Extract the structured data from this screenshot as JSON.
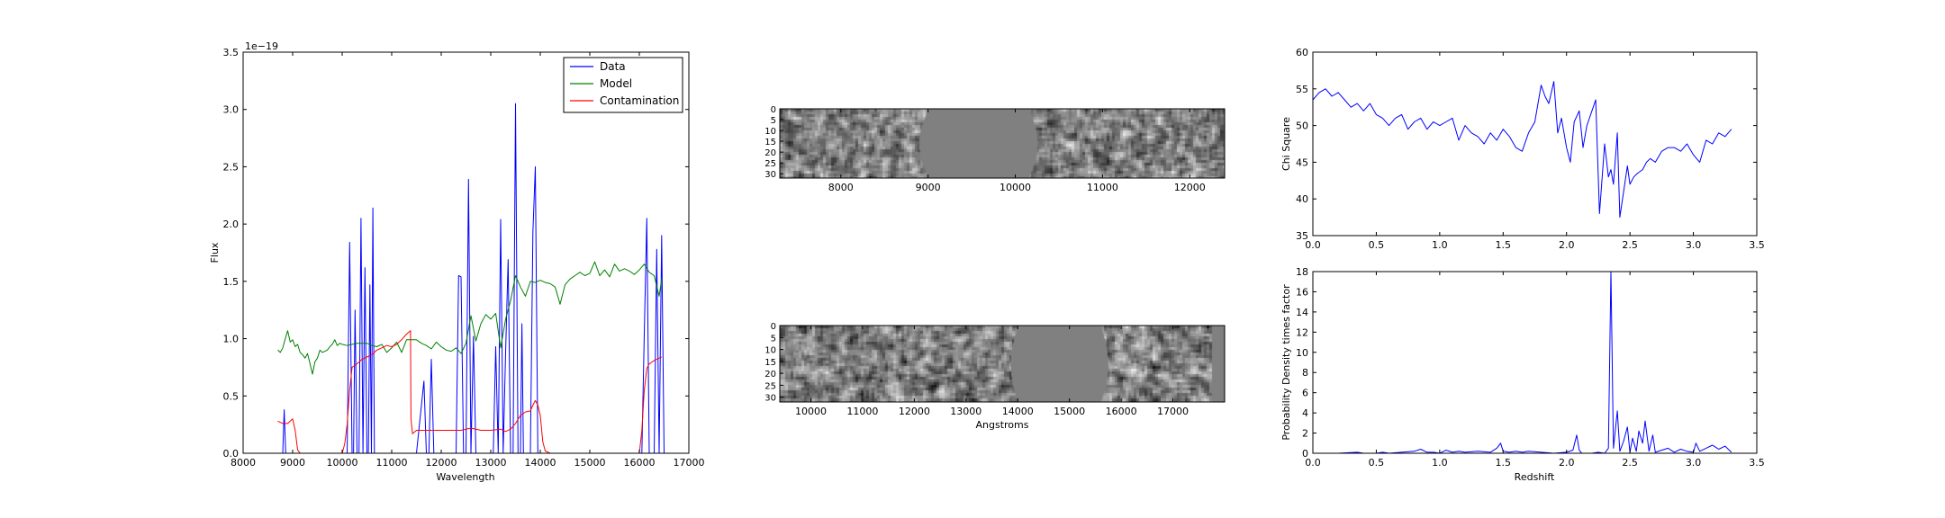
{
  "chart_data": [
    {
      "id": "flux",
      "type": "line",
      "xlabel": "Wavelength",
      "ylabel": "Flux",
      "offset_text": "1e−19",
      "xlim": [
        8000,
        17000
      ],
      "ylim": [
        0,
        3.5
      ],
      "xticks": [
        "8000",
        "9000",
        "10000",
        "11000",
        "12000",
        "13000",
        "14000",
        "15000",
        "16000",
        "17000"
      ],
      "yticks": [
        "0.0",
        "0.5",
        "1.0",
        "1.5",
        "2.0",
        "2.5",
        "3.0",
        "3.5"
      ],
      "legend_position": "top-right",
      "series": [
        {
          "name": "Data",
          "color": "#0000ff",
          "x": [
            8700,
            8800,
            8830,
            8860,
            8900,
            9000,
            9100,
            9200,
            9300,
            9400,
            9500,
            9600,
            9700,
            9800,
            9900,
            10000,
            10100,
            10150,
            10200,
            10230,
            10260,
            10300,
            10340,
            10380,
            10420,
            10460,
            10500,
            10530,
            10560,
            10590,
            10620,
            10650,
            10680,
            10710,
            10740,
            10770,
            10800,
            10830,
            10860,
            10890,
            10920,
            10950,
            10980,
            11010,
            11040,
            11070,
            11100,
            11300,
            11500,
            11650,
            11700,
            11750,
            11800,
            11850,
            11900,
            11950,
            12000,
            12100,
            12300,
            12350,
            12400,
            12450,
            12500,
            12550,
            12600,
            12650,
            12700,
            12750,
            12800,
            12900,
            13000,
            13050,
            13100,
            13150,
            13200,
            13250,
            13300,
            13350,
            13400,
            13450,
            13500,
            13550,
            13600,
            13630,
            13660,
            13700,
            13750,
            13800,
            13850,
            13900,
            13950,
            14000,
            14050,
            14100,
            14200,
            14400,
            14600,
            14800,
            15000,
            15200,
            15400,
            15600,
            15800,
            16000,
            16050,
            16100,
            16150,
            16200,
            16250,
            16300,
            16350,
            16400,
            16450,
            16500
          ],
          "y": [
            0,
            0,
            0.38,
            0,
            0,
            0,
            0,
            0,
            0,
            0,
            0,
            0,
            0,
            0,
            0,
            0,
            0,
            1.84,
            0,
            0,
            1.25,
            0,
            0,
            2.05,
            0,
            1.62,
            0,
            0,
            1.47,
            0,
            2.14,
            0,
            0,
            0,
            0,
            0,
            0,
            0,
            0,
            0,
            0,
            0,
            0,
            0,
            0,
            0,
            0,
            0,
            0,
            0.63,
            0,
            0,
            0.82,
            0,
            0,
            0,
            0,
            0,
            0,
            1.55,
            1.54,
            0,
            0,
            2.39,
            0,
            1.02,
            0,
            0,
            0,
            0,
            0,
            0,
            0.93,
            0,
            2.04,
            0,
            0.88,
            1.69,
            0,
            0,
            3.05,
            0,
            0,
            1.13,
            0,
            0,
            0,
            0,
            1.93,
            2.5,
            0,
            0,
            0,
            0,
            0,
            0,
            0,
            0,
            0,
            0,
            0,
            0,
            0,
            0,
            0,
            1.05,
            2.05,
            0,
            0,
            0,
            1.78,
            0,
            1.9,
            0
          ]
        },
        {
          "name": "Model",
          "color": "#008000",
          "x": [
            8700,
            8750,
            8800,
            8850,
            8900,
            8950,
            9000,
            9050,
            9100,
            9150,
            9200,
            9250,
            9300,
            9350,
            9400,
            9450,
            9500,
            9550,
            9600,
            9650,
            9700,
            9750,
            9800,
            9850,
            9900,
            9950,
            10000,
            10100,
            10200,
            10300,
            10400,
            10500,
            10600,
            10700,
            10800,
            10900,
            11000,
            11100,
            11200,
            11300,
            11400,
            11500,
            11600,
            11700,
            11800,
            11900,
            12000,
            12100,
            12200,
            12300,
            12400,
            12500,
            12600,
            12700,
            12800,
            12900,
            13000,
            13100,
            13200,
            13300,
            13400,
            13500,
            13600,
            13700,
            13800,
            13900,
            14000,
            14100,
            14200,
            14300,
            14400,
            14500,
            14600,
            14700,
            14800,
            14900,
            15000,
            15100,
            15200,
            15300,
            15400,
            15500,
            15600,
            15700,
            15800,
            15900,
            16000,
            16100,
            16200,
            16300,
            16400,
            16450
          ],
          "y": [
            0.9,
            0.88,
            0.92,
            1.0,
            1.07,
            0.97,
            0.99,
            0.93,
            0.95,
            0.88,
            0.86,
            0.83,
            0.87,
            0.78,
            0.69,
            0.8,
            0.83,
            0.9,
            0.88,
            0.89,
            0.9,
            0.93,
            0.95,
            0.99,
            0.94,
            0.96,
            0.95,
            0.94,
            0.95,
            0.96,
            0.96,
            0.96,
            0.94,
            0.93,
            0.95,
            0.88,
            0.92,
            0.97,
            0.88,
            0.99,
            0.99,
            0.99,
            0.96,
            0.94,
            0.91,
            0.97,
            0.93,
            0.9,
            0.89,
            0.92,
            0.87,
            0.96,
            1.2,
            0.98,
            1.13,
            1.21,
            1.17,
            1.22,
            0.92,
            1.17,
            1.33,
            1.55,
            1.45,
            1.37,
            1.5,
            1.49,
            1.51,
            1.49,
            1.48,
            1.45,
            1.3,
            1.47,
            1.52,
            1.55,
            1.58,
            1.55,
            1.57,
            1.67,
            1.55,
            1.6,
            1.54,
            1.65,
            1.59,
            1.61,
            1.59,
            1.56,
            1.6,
            1.65,
            1.58,
            1.55,
            1.37,
            1.52
          ]
        },
        {
          "name": "Contamination",
          "color": "#ff0000",
          "x": [
            8700,
            8800,
            8900,
            9000,
            9050,
            9100,
            9150,
            9200,
            9300,
            9500,
            9700,
            9900,
            10000,
            10050,
            10100,
            10150,
            10200,
            10300,
            10400,
            10500,
            10600,
            10700,
            10800,
            10900,
            11000,
            11100,
            11200,
            11300,
            11380,
            11390,
            11420,
            11500,
            11600,
            11800,
            12000,
            12200,
            12400,
            12600,
            12800,
            13000,
            13200,
            13300,
            13400,
            13500,
            13600,
            13700,
            13800,
            13850,
            13900,
            13950,
            14000,
            14050,
            14100,
            14200,
            14400,
            14600,
            14800,
            15000,
            15200,
            15400,
            15600,
            15800,
            16000,
            16050,
            16100,
            16150,
            16200,
            16300,
            16400,
            16450
          ],
          "y": [
            0.28,
            0.26,
            0.26,
            0.3,
            0.2,
            0.03,
            0,
            0,
            0,
            0,
            0,
            0,
            0,
            0.08,
            0.25,
            0.55,
            0.75,
            0.78,
            0.82,
            0.84,
            0.86,
            0.9,
            0.92,
            0.94,
            0.93,
            0.95,
            0.99,
            1.04,
            1.07,
            0.3,
            0.17,
            0.2,
            0.2,
            0.2,
            0.2,
            0.2,
            0.2,
            0.22,
            0.2,
            0.2,
            0.21,
            0.19,
            0.21,
            0.26,
            0.33,
            0.36,
            0.37,
            0.42,
            0.46,
            0.42,
            0.33,
            0.1,
            0.02,
            0,
            0,
            0,
            0,
            0,
            0,
            0,
            0,
            0,
            0,
            0.2,
            0.55,
            0.74,
            0.78,
            0.81,
            0.83,
            0.84
          ]
        }
      ]
    },
    {
      "id": "spectrum-2d-top",
      "type": "heatmap",
      "colormap": "gray",
      "xlim": [
        7300,
        12400
      ],
      "ylim": [
        0,
        32
      ],
      "xticks": [
        "8000",
        "9000",
        "10000",
        "11000",
        "12000"
      ],
      "yticks": [
        "0",
        "5",
        "10",
        "15",
        "20",
        "25",
        "30"
      ],
      "masked_region": [
        9000,
        10150
      ]
    },
    {
      "id": "spectrum-2d-bottom",
      "type": "heatmap",
      "colormap": "gray",
      "xlabel": "Angstroms",
      "xlim": [
        9400,
        18000
      ],
      "ylim": [
        0,
        32
      ],
      "xticks": [
        "10000",
        "11000",
        "12000",
        "13000",
        "14000",
        "15000",
        "16000",
        "17000"
      ],
      "yticks": [
        "0",
        "5",
        "10",
        "15",
        "20",
        "25",
        "30"
      ],
      "masked_region": [
        14000,
        15600
      ],
      "data_end": 17750
    },
    {
      "id": "chi-square",
      "type": "line",
      "ylabel": "Chi Square",
      "xlim": [
        0,
        3.5
      ],
      "ylim": [
        35,
        60
      ],
      "xticks": [
        "0.0",
        "0.5",
        "1.0",
        "1.5",
        "2.0",
        "2.5",
        "3.0",
        "3.5"
      ],
      "yticks": [
        "35",
        "40",
        "45",
        "50",
        "55",
        "60"
      ],
      "series": [
        {
          "color": "#0000ff",
          "x": [
            0,
            0.05,
            0.1,
            0.15,
            0.2,
            0.25,
            0.3,
            0.35,
            0.4,
            0.45,
            0.5,
            0.55,
            0.6,
            0.65,
            0.7,
            0.75,
            0.8,
            0.85,
            0.9,
            0.95,
            1.0,
            1.05,
            1.1,
            1.15,
            1.2,
            1.25,
            1.3,
            1.35,
            1.4,
            1.45,
            1.5,
            1.55,
            1.6,
            1.65,
            1.7,
            1.75,
            1.8,
            1.83,
            1.86,
            1.9,
            1.93,
            1.96,
            2.0,
            2.03,
            2.06,
            2.1,
            2.13,
            2.16,
            2.2,
            2.23,
            2.26,
            2.3,
            2.33,
            2.35,
            2.37,
            2.4,
            2.42,
            2.45,
            2.48,
            2.5,
            2.53,
            2.56,
            2.6,
            2.63,
            2.66,
            2.7,
            2.75,
            2.8,
            2.85,
            2.9,
            2.95,
            3.0,
            3.05,
            3.1,
            3.15,
            3.2,
            3.25,
            3.3
          ],
          "y": [
            53.5,
            54.5,
            55,
            54,
            54.5,
            53.5,
            52.5,
            53,
            52,
            53,
            51.5,
            51,
            50,
            51,
            51.5,
            49.5,
            50.5,
            51,
            49.5,
            50.5,
            50,
            50.5,
            51,
            48,
            50,
            49,
            48.5,
            47.5,
            49,
            48,
            49.5,
            48.5,
            47,
            46.5,
            49,
            50.5,
            55.5,
            54,
            53,
            56,
            49,
            51,
            47,
            45,
            50.5,
            52,
            47,
            50,
            52,
            53.5,
            38,
            47.5,
            43,
            44,
            42,
            49,
            37.5,
            41,
            44.5,
            42,
            43,
            43.5,
            44,
            45,
            45.5,
            45,
            46.5,
            47,
            47,
            46.5,
            47.5,
            46,
            45,
            48,
            47.5,
            49,
            48.5,
            49.5
          ]
        }
      ]
    },
    {
      "id": "probability-density",
      "type": "line",
      "xlabel": "Redshift",
      "ylabel": "Probability Density times factor",
      "xlim": [
        0,
        3.5
      ],
      "ylim": [
        0,
        18
      ],
      "xticks": [
        "0.0",
        "0.5",
        "1.0",
        "1.5",
        "2.0",
        "2.5",
        "3.0",
        "3.5"
      ],
      "yticks": [
        "0",
        "2",
        "4",
        "6",
        "8",
        "10",
        "12",
        "14",
        "16",
        "18"
      ],
      "series": [
        {
          "color": "#0000ff",
          "x": [
            0,
            0.2,
            0.35,
            0.4,
            0.5,
            0.55,
            0.6,
            0.7,
            0.8,
            0.85,
            0.9,
            0.95,
            1.0,
            1.05,
            1.1,
            1.15,
            1.2,
            1.3,
            1.4,
            1.45,
            1.48,
            1.5,
            1.55,
            1.6,
            1.65,
            1.7,
            1.8,
            1.9,
            2.0,
            2.05,
            2.08,
            2.1,
            2.12,
            2.2,
            2.25,
            2.3,
            2.33,
            2.35,
            2.37,
            2.4,
            2.42,
            2.45,
            2.48,
            2.5,
            2.52,
            2.55,
            2.57,
            2.6,
            2.62,
            2.65,
            2.68,
            2.7,
            2.75,
            2.8,
            2.85,
            2.9,
            2.95,
            3.0,
            3.02,
            3.05,
            3.1,
            3.15,
            3.2,
            3.25,
            3.3
          ],
          "y": [
            0,
            0,
            0.1,
            0,
            0,
            0.1,
            0,
            0.1,
            0.2,
            0.4,
            0.1,
            0.1,
            0,
            0.3,
            0.1,
            0.2,
            0.1,
            0.2,
            0.1,
            0.5,
            1.0,
            0.2,
            0.1,
            0.2,
            0.1,
            0.2,
            0.1,
            0,
            0.1,
            0.3,
            1.8,
            0.3,
            0,
            0,
            0.1,
            0,
            0.5,
            18,
            0.5,
            4.2,
            0.2,
            1.2,
            2.6,
            0.1,
            1.5,
            0.2,
            2.2,
            1.0,
            3.2,
            0.2,
            1.8,
            0.1,
            0.3,
            0.5,
            0.1,
            0.4,
            0.2,
            0.1,
            1.0,
            0.2,
            0.5,
            0.8,
            0.4,
            0.7,
            0.1
          ]
        }
      ]
    }
  ]
}
